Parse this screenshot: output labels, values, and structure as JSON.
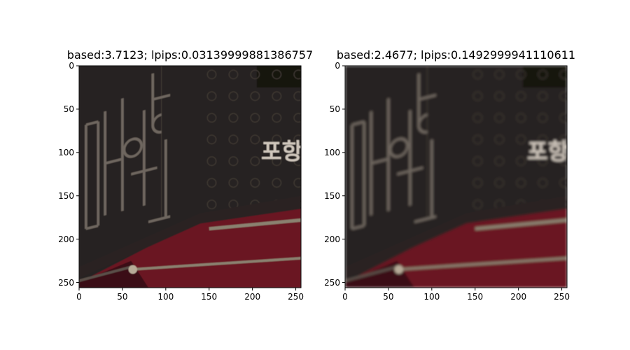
{
  "figure": {
    "panels": [
      {
        "title": "based:3.7123; lpips:0.03139999881386757",
        "x_ticks": [
          "0",
          "50",
          "100",
          "150",
          "200",
          "250"
        ],
        "y_ticks": [
          "0",
          "50",
          "100",
          "150",
          "200",
          "250"
        ],
        "x_range": [
          0,
          256
        ],
        "y_range": [
          0,
          256
        ],
        "signage_text": "포항",
        "vertical_sign_glyphs": "민예원",
        "image_tone": "sharp"
      },
      {
        "title": "based:2.4677; lpips:0.1492999941110611",
        "x_ticks": [
          "0",
          "50",
          "100",
          "150",
          "200",
          "250"
        ],
        "y_ticks": [
          "0",
          "50",
          "100",
          "150",
          "200",
          "250"
        ],
        "x_range": [
          0,
          256
        ],
        "y_range": [
          0,
          256
        ],
        "signage_text": "포항",
        "vertical_sign_glyphs": "민예원",
        "image_tone": "blurred"
      }
    ],
    "colors": {
      "wall": "#2f2a27",
      "wall_dark": "#1e1a18",
      "sign_stroke": "#6e665e",
      "sign_text_light": "#cfc6bc",
      "awning_red": "#6b1622",
      "awning_dark": "#3a0c14",
      "metal_bar": "#8a8170"
    }
  }
}
